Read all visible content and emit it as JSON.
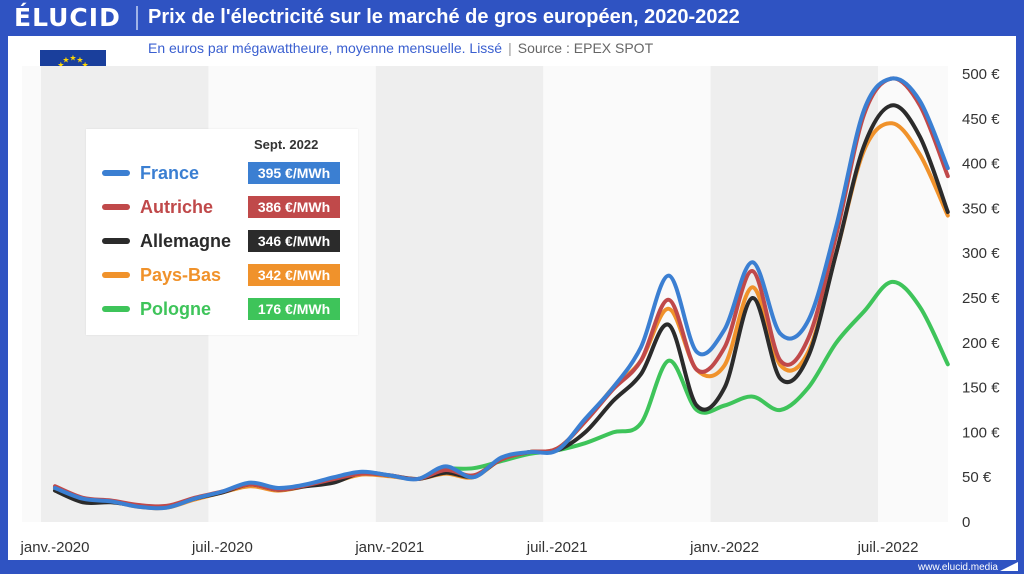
{
  "header": {
    "logo": "ÉLUCID",
    "title": "Prix de l'électricité sur le marché de gros européen, 2020-2022",
    "subtitle": "En euros par mégawattheure, moyenne mensuelle. Lissé",
    "source": "Source : EPEX SPOT"
  },
  "footer": {
    "url": "www.elucid.media"
  },
  "legend": {
    "heading": "Sept. 2022"
  },
  "colors": {
    "France": "#3b7fd2",
    "Autriche": "#c0494a",
    "Allemagne": "#2b2b2b",
    "Pays-Bas": "#f0922b",
    "Pologne": "#3ec45a"
  },
  "chart_data": {
    "type": "line",
    "xlabel": "",
    "ylabel": "",
    "ylim": [
      0,
      500
    ],
    "yticks": [
      "0",
      "50 €",
      "100 €",
      "150 €",
      "200 €",
      "250 €",
      "300 €",
      "350 €",
      "400 €",
      "450 €",
      "500 €"
    ],
    "x_tick_labels": [
      "janv.-2020",
      "juil.-2020",
      "janv.-2021",
      "juil.-2021",
      "janv.-2022",
      "juil.-2022"
    ],
    "x": [
      "2020-01",
      "2020-02",
      "2020-03",
      "2020-04",
      "2020-05",
      "2020-06",
      "2020-07",
      "2020-08",
      "2020-09",
      "2020-10",
      "2020-11",
      "2020-12",
      "2021-01",
      "2021-02",
      "2021-03",
      "2021-04",
      "2021-05",
      "2021-06",
      "2021-07",
      "2021-08",
      "2021-09",
      "2021-10",
      "2021-11",
      "2021-12",
      "2022-01",
      "2022-02",
      "2022-03",
      "2022-04",
      "2022-05",
      "2022-06",
      "2022-07",
      "2022-08",
      "2022-09"
    ],
    "grid": "alternating vertical bands",
    "legend_position": "top-left",
    "series": [
      {
        "name": "France",
        "last_value_label": "395 €/MWh",
        "values": [
          38,
          26,
          23,
          17,
          16,
          26,
          34,
          44,
          38,
          42,
          50,
          56,
          52,
          48,
          62,
          50,
          72,
          78,
          80,
          115,
          150,
          195,
          275,
          190,
          215,
          290,
          210,
          225,
          330,
          460,
          495,
          470,
          395
        ]
      },
      {
        "name": "Autriche",
        "last_value_label": "386 €/MWh",
        "values": [
          40,
          27,
          24,
          19,
          18,
          27,
          34,
          42,
          36,
          41,
          48,
          54,
          52,
          48,
          58,
          52,
          70,
          78,
          82,
          112,
          148,
          180,
          248,
          170,
          195,
          280,
          180,
          205,
          320,
          455,
          495,
          465,
          386
        ]
      },
      {
        "name": "Allemagne",
        "last_value_label": "346 €/MWh",
        "values": [
          35,
          22,
          22,
          18,
          17,
          26,
          33,
          42,
          36,
          40,
          44,
          55,
          52,
          48,
          55,
          51,
          70,
          78,
          80,
          100,
          135,
          165,
          220,
          130,
          150,
          250,
          160,
          185,
          300,
          420,
          465,
          430,
          346
        ]
      },
      {
        "name": "Pays-Bas",
        "last_value_label": "342 €/MWh",
        "values": [
          38,
          25,
          23,
          17,
          16,
          25,
          33,
          40,
          35,
          40,
          45,
          53,
          51,
          48,
          54,
          50,
          70,
          78,
          82,
          112,
          150,
          180,
          238,
          170,
          175,
          262,
          175,
          190,
          300,
          415,
          445,
          410,
          342
        ]
      },
      {
        "name": "Pologne",
        "last_value_label": "176 €/MWh",
        "values": [
          null,
          null,
          null,
          null,
          null,
          null,
          null,
          null,
          null,
          null,
          null,
          null,
          null,
          null,
          60,
          60,
          68,
          76,
          80,
          88,
          100,
          110,
          180,
          125,
          130,
          140,
          125,
          150,
          200,
          235,
          268,
          240,
          176
        ]
      }
    ]
  }
}
